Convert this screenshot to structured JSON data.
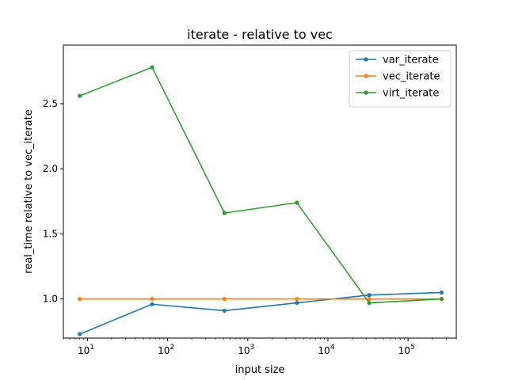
{
  "chart_data": {
    "type": "line",
    "title": "iterate - relative to vec",
    "xlabel": "input size",
    "ylabel": "real_time relative to vec_iterate",
    "xscale": "log",
    "xlim": [
      5,
      400000
    ],
    "ylim": [
      0.7,
      2.95
    ],
    "x": [
      8,
      64,
      512,
      4096,
      32768,
      262144
    ],
    "xticks": [
      10,
      100,
      1000,
      10000,
      100000
    ],
    "xtick_labels": [
      {
        "base": "10",
        "exp": "1"
      },
      {
        "base": "10",
        "exp": "2"
      },
      {
        "base": "10",
        "exp": "3"
      },
      {
        "base": "10",
        "exp": "4"
      },
      {
        "base": "10",
        "exp": "5"
      }
    ],
    "yticks": [
      1.0,
      1.5,
      2.0,
      2.5
    ],
    "ytick_labels": [
      "1.0",
      "1.5",
      "2.0",
      "2.5"
    ],
    "grid": false,
    "legend_position": "top-right",
    "series": [
      {
        "name": "var_iterate",
        "color": "#1f77b4",
        "values": [
          0.73,
          0.96,
          0.91,
          0.97,
          1.03,
          1.05
        ]
      },
      {
        "name": "vec_iterate",
        "color": "#ff7f0e",
        "values": [
          1.0,
          1.0,
          1.0,
          1.0,
          1.0,
          1.0
        ]
      },
      {
        "name": "virt_iterate",
        "color": "#2ca02c",
        "values": [
          2.56,
          2.78,
          1.66,
          1.74,
          0.97,
          1.0
        ]
      }
    ]
  }
}
